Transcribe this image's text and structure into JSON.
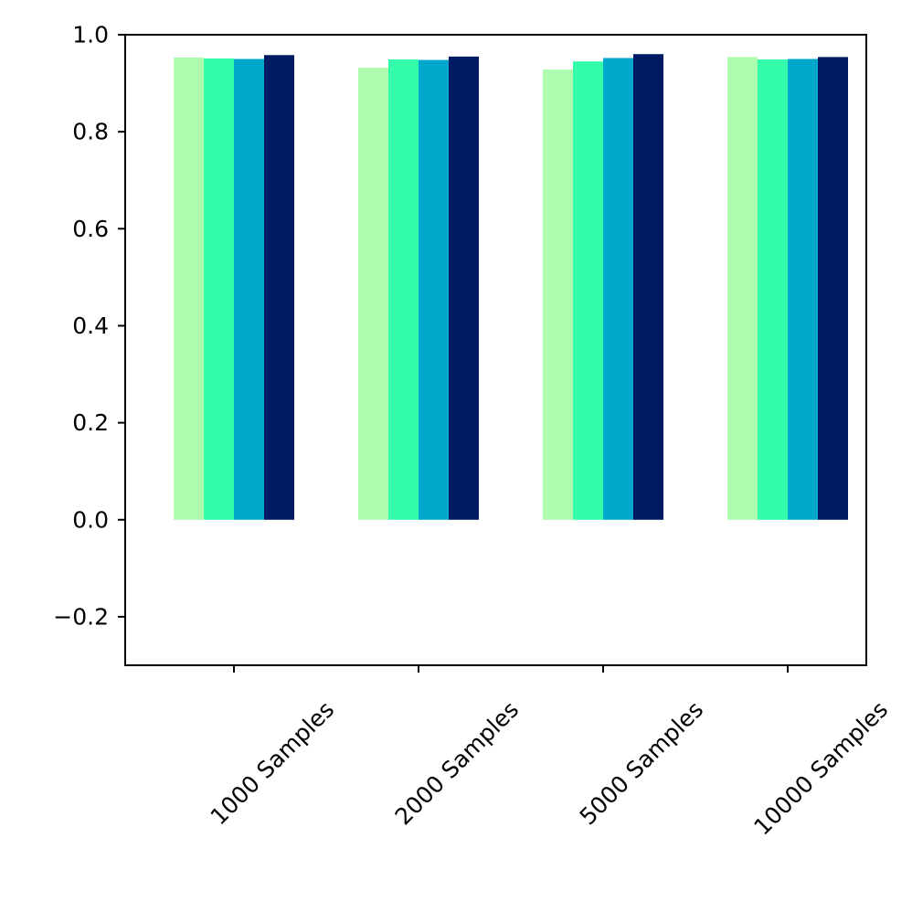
{
  "chart_data": {
    "type": "bar",
    "categories": [
      "1000 Samples",
      "2000 Samples",
      "5000 Samples",
      "10000 Samples"
    ],
    "series": [
      {
        "color": "#adfcb0",
        "values": [
          0.953,
          0.932,
          0.928,
          0.954
        ]
      },
      {
        "color": "#33fcaa",
        "values": [
          0.951,
          0.949,
          0.945,
          0.949
        ]
      },
      {
        "color": "#00a8cc",
        "values": [
          0.95,
          0.948,
          0.952,
          0.95
        ]
      },
      {
        "color": "#001b63",
        "values": [
          0.958,
          0.955,
          0.96,
          0.954
        ]
      }
    ],
    "y_ticks": [
      -0.2,
      0.0,
      0.2,
      0.4,
      0.6,
      0.8,
      1.0
    ],
    "y_tick_labels": [
      "−0.2",
      "0.0",
      "0.2",
      "0.4",
      "0.6",
      "0.8",
      "1.0"
    ],
    "ylim": [
      -0.3,
      1.0
    ],
    "grid": false,
    "legend": "none",
    "title": "",
    "xlabel": "",
    "ylabel": ""
  }
}
